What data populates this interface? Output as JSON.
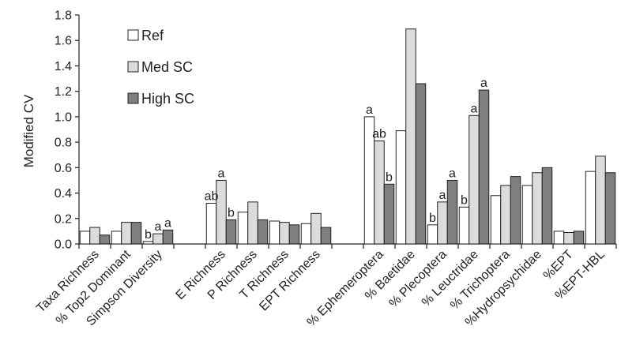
{
  "chart_data": {
    "type": "bar",
    "ylabel": "Modified CV",
    "ylim": [
      0,
      1.8
    ],
    "yticks": [
      "0.0",
      "0.2",
      "0.4",
      "0.6",
      "0.8",
      "1.0",
      "1.2",
      "1.4",
      "1.6",
      "1.8"
    ],
    "grid": false,
    "legend_position": "top-left",
    "colors": {
      "Ref": "#ffffff",
      "Med SC": "#dcdcdc",
      "High SC": "#7f7f7f"
    },
    "categories": [
      "Taxa Richness",
      "% Top2 Dominant",
      "Simpson Diversity",
      "E Richness",
      "P Richness",
      "T Richness",
      "EPT Richness",
      "% Ephemeroptera",
      "% Baetidae",
      "% Plecoptera",
      "% Leuctridae",
      "% Trichoptera",
      "%Hydropsychidae",
      "%EPT",
      "%EPT-HBL"
    ],
    "groups": [
      [
        0,
        1,
        2
      ],
      [
        3,
        4,
        5,
        6
      ],
      [
        7,
        8,
        9,
        10,
        11,
        12,
        13,
        14
      ]
    ],
    "series": [
      {
        "name": "Ref",
        "values": [
          0.1,
          0.1,
          0.02,
          0.32,
          0.25,
          0.18,
          0.16,
          1.0,
          0.89,
          0.15,
          0.29,
          0.38,
          0.46,
          0.1,
          0.57
        ],
        "labels": [
          "",
          "",
          "b",
          "ab",
          "",
          "",
          "",
          "a",
          "",
          "b",
          "b",
          "",
          "",
          "",
          ""
        ]
      },
      {
        "name": "Med SC",
        "values": [
          0.13,
          0.17,
          0.08,
          0.5,
          0.33,
          0.17,
          0.24,
          0.81,
          1.69,
          0.33,
          1.01,
          0.46,
          0.56,
          0.09,
          0.69
        ],
        "labels": [
          "",
          "",
          "a",
          "a",
          "",
          "",
          "",
          "ab",
          "",
          "a",
          "a",
          "",
          "",
          "",
          ""
        ]
      },
      {
        "name": "High SC",
        "values": [
          0.07,
          0.17,
          0.11,
          0.19,
          0.19,
          0.15,
          0.13,
          0.47,
          1.26,
          0.5,
          1.21,
          0.53,
          0.6,
          0.1,
          0.56
        ],
        "labels": [
          "",
          "",
          "a",
          "b",
          "",
          "",
          "",
          "b",
          "",
          "a",
          "a",
          "",
          "",
          "",
          ""
        ]
      }
    ]
  }
}
